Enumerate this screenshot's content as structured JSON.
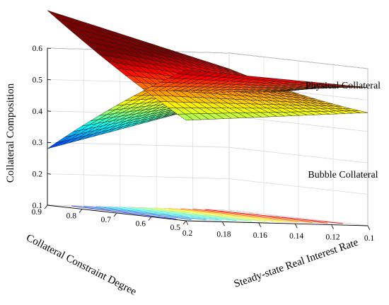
{
  "chart_data": {
    "type": "surface3d",
    "zlabel": "Collateral Composition",
    "xlabel": "Collateral Constraint Degree",
    "ylabel": "Steady-state Real Interest Rate",
    "zlim": [
      0.1,
      0.6
    ],
    "xlim": [
      0.5,
      0.9
    ],
    "ylim": [
      0.1,
      0.2
    ],
    "z_ticks": [
      "0.1",
      "0.2",
      "0.3",
      "0.4",
      "0.5",
      "0.6"
    ],
    "x_ticks": [
      "0.5",
      "0.6",
      "0.7",
      "0.8",
      "0.9"
    ],
    "y_ticks": [
      "0.1",
      "0.12",
      "0.14",
      "0.16",
      "0.18",
      "0.2"
    ],
    "grid": true,
    "colormap": "jet",
    "series": [
      {
        "name": "Physical Collateral",
        "corners": {
          "x0.5_y0.1": 0.54,
          "x0.5_y0.2": 0.58,
          "x0.9_y0.1": 0.45,
          "x0.9_y0.2": 0.28
        }
      },
      {
        "name": "Bubble Collateral",
        "corners": {
          "x0.5_y0.1": 0.46,
          "x0.5_y0.2": 0.42,
          "x0.9_y0.1": 0.55,
          "x0.9_y0.2": 0.72
        }
      }
    ]
  }
}
